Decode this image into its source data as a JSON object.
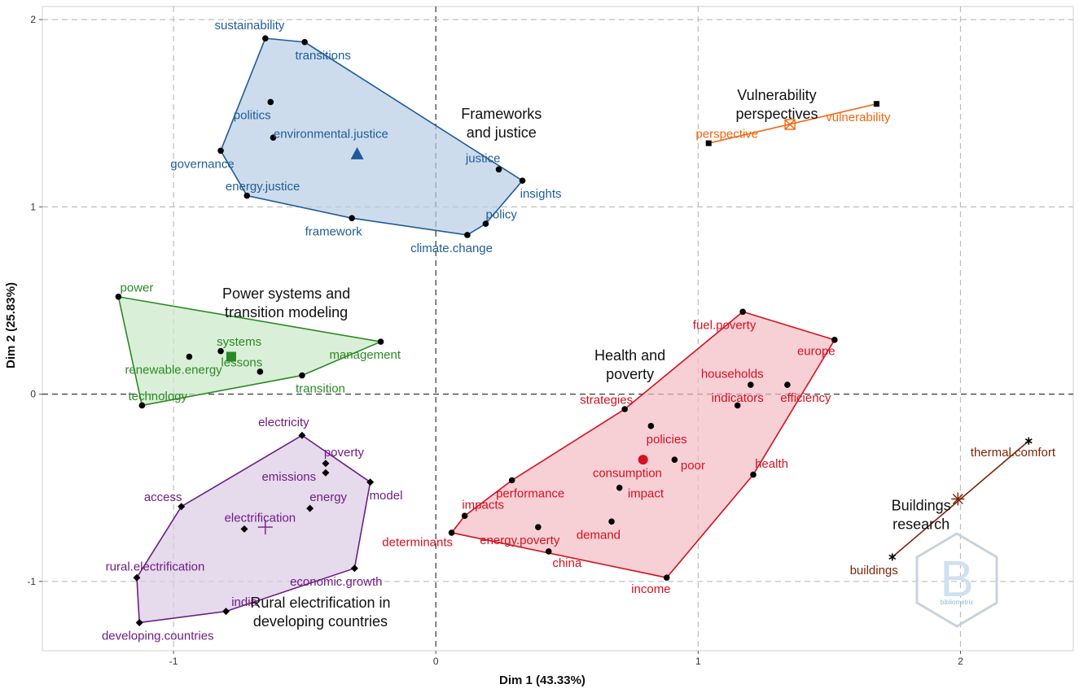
{
  "chart_data": {
    "type": "scatter",
    "xlabel": "Dim 1 (43.33%)",
    "ylabel": "Dim 2 (25.83%)",
    "xlim": [
      -1.5,
      2.43
    ],
    "ylim": [
      -1.37,
      2.07
    ],
    "xticks": [
      -1,
      0,
      1,
      2
    ],
    "yticks": [
      -1,
      0,
      1,
      2
    ],
    "tick_labels_x": [
      "-1",
      "0",
      "1",
      "2"
    ],
    "tick_labels_y": [
      "-1",
      "0",
      "1",
      "2"
    ],
    "grid": true,
    "clusters": [
      {
        "id": "frameworks",
        "title": [
          "Frameworks",
          "and justice"
        ],
        "title_pos": [
          0.25,
          1.47
        ],
        "color": "#1f5c99",
        "fill": "#b8cde6",
        "marker": "circle",
        "centroid_marker": "triangle",
        "centroid": [
          -0.3,
          1.28
        ],
        "hull": [
          "sustainability",
          "transitions",
          "insights",
          "policy",
          "climate.change",
          "framework",
          "energy.justice",
          "governance"
        ],
        "points": [
          {
            "label": "sustainability",
            "x": -0.65,
            "y": 1.9,
            "lx": -0.71,
            "ly": 1.97
          },
          {
            "label": "transitions",
            "x": -0.5,
            "y": 1.88,
            "lx": -0.43,
            "ly": 1.81
          },
          {
            "label": "politics",
            "x": -0.63,
            "y": 1.56,
            "lx": -0.7,
            "ly": 1.49
          },
          {
            "label": "environmental.justice",
            "x": -0.62,
            "y": 1.37,
            "lx": -0.4,
            "ly": 1.39
          },
          {
            "label": "governance",
            "x": -0.82,
            "y": 1.3,
            "lx": -0.89,
            "ly": 1.23
          },
          {
            "label": "justice",
            "x": 0.24,
            "y": 1.2,
            "lx": 0.18,
            "ly": 1.26
          },
          {
            "label": "insights",
            "x": 0.33,
            "y": 1.14,
            "lx": 0.4,
            "ly": 1.07
          },
          {
            "label": "energy.justice",
            "x": -0.72,
            "y": 1.06,
            "lx": -0.66,
            "ly": 1.11
          },
          {
            "label": "policy",
            "x": 0.19,
            "y": 0.91,
            "lx": 0.25,
            "ly": 0.96
          },
          {
            "label": "framework",
            "x": -0.32,
            "y": 0.94,
            "lx": -0.39,
            "ly": 0.87
          },
          {
            "label": "climate.change",
            "x": 0.12,
            "y": 0.85,
            "lx": 0.06,
            "ly": 0.78
          }
        ]
      },
      {
        "id": "power",
        "title": [
          "Power systems and",
          "transition modeling"
        ],
        "title_pos": [
          -0.57,
          0.51
        ],
        "color": "#2a8a24",
        "fill": "#cbe8c8",
        "marker": "circle",
        "centroid_marker": "square",
        "centroid": [
          -0.78,
          0.2
        ],
        "hull": [
          "power",
          "management",
          "transition",
          "technology"
        ],
        "points": [
          {
            "label": "power",
            "x": -1.21,
            "y": 0.52,
            "lx": -1.14,
            "ly": 0.57
          },
          {
            "label": "systems",
            "x": -0.82,
            "y": 0.23,
            "lx": -0.75,
            "ly": 0.28
          },
          {
            "label": "renewable.energy",
            "x": -0.94,
            "y": 0.2,
            "lx": -1.0,
            "ly": 0.13
          },
          {
            "label": "lessons",
            "x": -0.67,
            "y": 0.12,
            "lx": -0.74,
            "ly": 0.17
          },
          {
            "label": "management",
            "x": -0.21,
            "y": 0.28,
            "lx": -0.27,
            "ly": 0.21
          },
          {
            "label": "transition",
            "x": -0.51,
            "y": 0.1,
            "lx": -0.44,
            "ly": 0.03
          },
          {
            "label": "technology",
            "x": -1.12,
            "y": -0.06,
            "lx": -1.06,
            "ly": -0.01
          }
        ]
      },
      {
        "id": "rural",
        "title": [
          "Rural electrification in",
          "developing countries"
        ],
        "title_pos": [
          -0.44,
          -1.14
        ],
        "color": "#6e1e82",
        "fill": "#dccbe6",
        "marker": "diamond",
        "centroid_marker": "plus",
        "centroid": [
          -0.65,
          -0.71
        ],
        "hull": [
          "electricity",
          "model",
          "economic.growth",
          "india",
          "developing.countries",
          "rural.electrification",
          "access"
        ],
        "points": [
          {
            "label": "electricity",
            "x": -0.51,
            "y": -0.22,
            "lx": -0.58,
            "ly": -0.15
          },
          {
            "label": "poverty",
            "x": -0.42,
            "y": -0.37,
            "lx": -0.35,
            "ly": -0.31
          },
          {
            "label": "emissions",
            "x": -0.42,
            "y": -0.42,
            "lx": -0.56,
            "ly": -0.44
          },
          {
            "label": "model",
            "x": -0.25,
            "y": -0.47,
            "lx": -0.19,
            "ly": -0.54
          },
          {
            "label": "access",
            "x": -0.97,
            "y": -0.6,
            "lx": -1.04,
            "ly": -0.55
          },
          {
            "label": "energy",
            "x": -0.48,
            "y": -0.61,
            "lx": -0.41,
            "ly": -0.55
          },
          {
            "label": "electrification",
            "x": -0.73,
            "y": -0.72,
            "lx": -0.67,
            "ly": -0.66
          },
          {
            "label": "economic.growth",
            "x": -0.31,
            "y": -0.93,
            "lx": -0.38,
            "ly": -1.0
          },
          {
            "label": "rural.electrification",
            "x": -1.14,
            "y": -0.98,
            "lx": -1.07,
            "ly": -0.92
          },
          {
            "label": "india",
            "x": -0.8,
            "y": -1.16,
            "lx": -0.73,
            "ly": -1.11
          },
          {
            "label": "developing.countries",
            "x": -1.13,
            "y": -1.22,
            "lx": -1.06,
            "ly": -1.29
          }
        ]
      },
      {
        "id": "health",
        "title": [
          "Health and",
          "poverty"
        ],
        "title_pos": [
          0.74,
          0.18
        ],
        "color": "#d6101e",
        "fill": "#f4bcc4",
        "marker": "circle",
        "centroid_marker": "bigcircle",
        "centroid": [
          0.79,
          -0.35
        ],
        "hull": [
          "fuel.poverty",
          "europe",
          "health",
          "income",
          "determinants",
          "impacts",
          "performance",
          "strategies"
        ],
        "points": [
          {
            "label": "fuel.poverty",
            "x": 1.17,
            "y": 0.44,
            "lx": 1.1,
            "ly": 0.37
          },
          {
            "label": "europe",
            "x": 1.52,
            "y": 0.29,
            "lx": 1.45,
            "ly": 0.23
          },
          {
            "label": "households",
            "x": 1.2,
            "y": 0.05,
            "lx": 1.13,
            "ly": 0.11
          },
          {
            "label": "efficiency",
            "x": 1.34,
            "y": 0.05,
            "lx": 1.41,
            "ly": -0.02
          },
          {
            "label": "strategies",
            "x": 0.72,
            "y": -0.08,
            "lx": 0.65,
            "ly": -0.03
          },
          {
            "label": "indicators",
            "x": 1.15,
            "y": -0.06,
            "lx": 1.15,
            "ly": -0.02
          },
          {
            "label": "policies",
            "x": 0.82,
            "y": -0.17,
            "lx": 0.88,
            "ly": -0.24
          },
          {
            "label": "poor",
            "x": 0.91,
            "y": -0.35,
            "lx": 0.98,
            "ly": -0.38
          },
          {
            "label": "consumption",
            "x": 0.79,
            "y": -0.35,
            "lx": 0.73,
            "ly": -0.42
          },
          {
            "label": "health",
            "x": 1.21,
            "y": -0.43,
            "lx": 1.28,
            "ly": -0.37
          },
          {
            "label": "performance",
            "x": 0.29,
            "y": -0.46,
            "lx": 0.36,
            "ly": -0.53
          },
          {
            "label": "impact",
            "x": 0.7,
            "y": -0.5,
            "lx": 0.8,
            "ly": -0.53
          },
          {
            "label": "impacts",
            "x": 0.11,
            "y": -0.65,
            "lx": 0.18,
            "ly": -0.59
          },
          {
            "label": "energy.poverty",
            "x": 0.39,
            "y": -0.71,
            "lx": 0.32,
            "ly": -0.78
          },
          {
            "label": "demand",
            "x": 0.67,
            "y": -0.68,
            "lx": 0.62,
            "ly": -0.75
          },
          {
            "label": "determinants",
            "x": 0.06,
            "y": -0.74,
            "lx": -0.07,
            "ly": -0.79
          },
          {
            "label": "china",
            "x": 0.43,
            "y": -0.84,
            "lx": 0.5,
            "ly": -0.9
          },
          {
            "label": "income",
            "x": 0.88,
            "y": -0.98,
            "lx": 0.82,
            "ly": -1.04
          }
        ]
      },
      {
        "id": "vulnerability",
        "title": [
          "Vulnerability",
          "perspectives"
        ],
        "title_pos": [
          1.3,
          1.57
        ],
        "color": "#f2650f",
        "fill": "none",
        "marker": "square",
        "centroid_marker": "boxx",
        "centroid": [
          1.35,
          1.44
        ],
        "hull": [
          "perspective",
          "vulnerability"
        ],
        "points": [
          {
            "label": "vulnerability",
            "x": 1.68,
            "y": 1.55,
            "lx": 1.61,
            "ly": 1.48
          },
          {
            "label": "perspective",
            "x": 1.04,
            "y": 1.34,
            "lx": 1.11,
            "ly": 1.39
          }
        ]
      },
      {
        "id": "buildings",
        "title": [
          "Buildings",
          "research"
        ],
        "title_pos": [
          1.85,
          -0.62
        ],
        "color": "#7d2509",
        "fill": "none",
        "marker": "asterisk",
        "centroid_marker": "star",
        "centroid": [
          1.99,
          -0.56
        ],
        "hull": [
          "buildings",
          "thermal.comfort"
        ],
        "points": [
          {
            "label": "thermal.comfort",
            "x": 2.26,
            "y": -0.25,
            "lx": 2.2,
            "ly": -0.31
          },
          {
            "label": "buildings",
            "x": 1.74,
            "y": -0.87,
            "lx": 1.67,
            "ly": -0.94
          }
        ]
      }
    ],
    "watermark_text": "bibliometrix"
  }
}
